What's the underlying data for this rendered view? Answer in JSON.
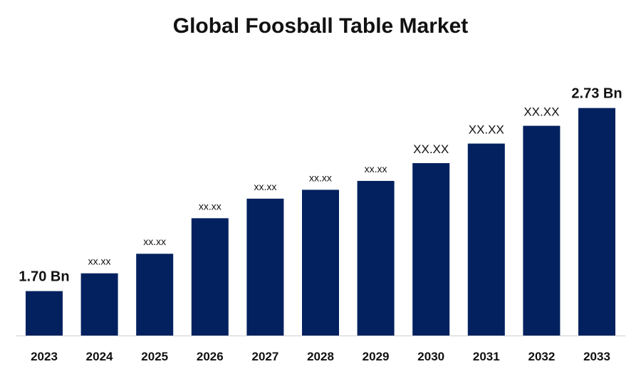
{
  "chart_data": {
    "type": "bar",
    "title": "Global Foosball Table Market",
    "xlabel": "",
    "ylabel": "",
    "categories": [
      "2023",
      "2024",
      "2025",
      "2026",
      "2027",
      "2028",
      "2029",
      "2030",
      "2031",
      "2032",
      "2033"
    ],
    "values": [
      1.7,
      1.8,
      1.91,
      2.11,
      2.22,
      2.27,
      2.32,
      2.42,
      2.53,
      2.63,
      2.73
    ],
    "data_labels": [
      "1.70 Bn",
      "xx.xx",
      "xx.xx",
      "xx.xx",
      "xx.xx",
      "xx.xx",
      "xx.xx",
      "XX.XX",
      "XX.XX",
      "XX.XX",
      "2.73 Bn"
    ],
    "ylim": [
      1.45,
      2.75
    ],
    "grid": false,
    "legend": "none",
    "bar_color": "#03215F"
  }
}
